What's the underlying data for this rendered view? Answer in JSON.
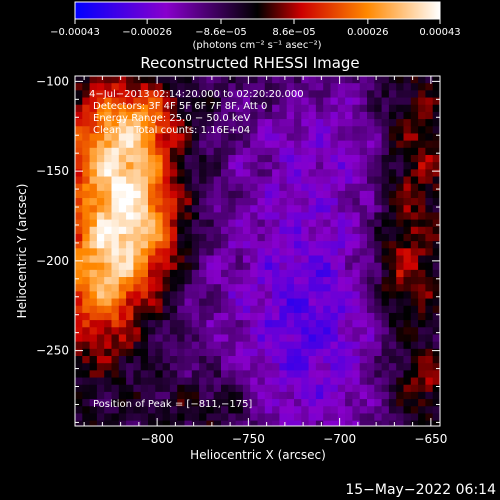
{
  "chart_data": {
    "type": "heatmap",
    "title": "Reconstructed RHESSI Image",
    "xlabel": "Heliocentric X (arcsec)",
    "ylabel": "Heliocentric Y (arcsec)",
    "xlim": [
      -845,
      -645
    ],
    "ylim": [
      -292,
      -97
    ],
    "xticks": [
      -800,
      -750,
      -700,
      -650
    ],
    "xtick_labels": [
      "−800",
      "−750",
      "−700",
      "−650"
    ],
    "yticks": [
      -100,
      -150,
      -200,
      -250
    ],
    "ytick_labels": [
      "−100",
      "−150",
      "−200",
      "−250"
    ],
    "colorbar": {
      "range": [
        -0.00043,
        0.00043
      ],
      "ticks": [
        -0.00043,
        -0.00026,
        -8.6e-05,
        8.6e-05,
        0.00026,
        0.00043
      ],
      "tick_labels": [
        "−0.00043",
        "−0.00026",
        "−8.6e−05",
        "8.6e−05",
        "0.00026",
        "0.00043"
      ],
      "unit_label": "(photons cm⁻² s⁻¹ asec⁻²)",
      "colors": [
        "#0000ff",
        "#8800cc",
        "#000000",
        "#cc0000",
        "#ff8800",
        "#ffffff"
      ]
    },
    "annotations": [
      "4−Jul−2013 02:14:20.000 to 02:20:20.000",
      "Detectors: 3F 4F 5F 6F 7F 8F, Att 0",
      "Energy Range: 25.0 − 50.0 keV",
      "Clean    Total counts: 1.16E+04"
    ],
    "peak_label": "Position of Peak = [−811,−175]",
    "peak": [
      -811,
      -175
    ],
    "sources": [
      {
        "x": -813,
        "y": -178,
        "sx": 20,
        "sy": 30,
        "amp": 1.0
      },
      {
        "x": -826,
        "y": -133,
        "sx": 18,
        "sy": 22,
        "amp": 0.6
      },
      {
        "x": -833,
        "y": -215,
        "sx": 16,
        "sy": 28,
        "amp": 0.55
      },
      {
        "x": -805,
        "y": -120,
        "sx": 14,
        "sy": 14,
        "amp": 0.35
      },
      {
        "x": -660,
        "y": -140,
        "sx": 14,
        "sy": 35,
        "amp": 0.4
      },
      {
        "x": -667,
        "y": -210,
        "sx": 12,
        "sy": 22,
        "amp": 0.35
      },
      {
        "x": -655,
        "y": -268,
        "sx": 12,
        "sy": 14,
        "amp": 0.3
      },
      {
        "x": -770,
        "y": -280,
        "sx": 16,
        "sy": 10,
        "amp": 0.2
      },
      {
        "x": -782,
        "y": -200,
        "sx": 30,
        "sy": 50,
        "amp": -0.2
      },
      {
        "x": -715,
        "y": -235,
        "sx": 30,
        "sy": 55,
        "amp": -0.55
      },
      {
        "x": -700,
        "y": -130,
        "sx": 40,
        "sy": 30,
        "amp": -0.3
      }
    ]
  },
  "footer": {
    "timestamp": "15−May−2022 06:14"
  }
}
